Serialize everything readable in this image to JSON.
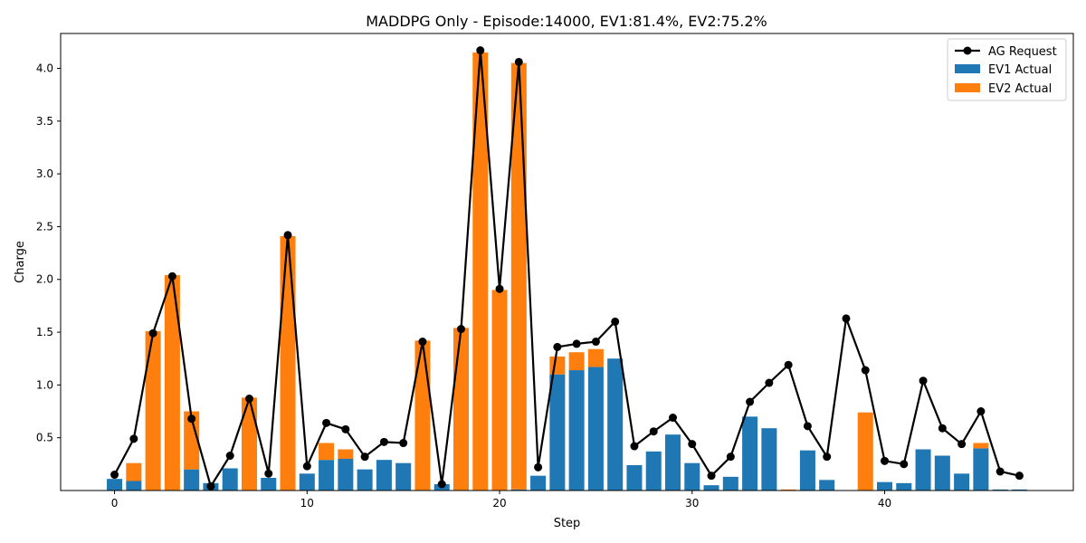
{
  "chart_data": {
    "type": "bar",
    "title": "MADDPG Only - Episode:14000, EV1:81.4%, EV2:75.2%",
    "xlabel": "Step",
    "ylabel": "Charge",
    "xlim": [
      -2.8,
      49.8
    ],
    "ylim": [
      0,
      4.33
    ],
    "x_ticks": [
      0,
      10,
      20,
      30,
      40
    ],
    "y_ticks": [
      0.5,
      1.0,
      1.5,
      2.0,
      2.5,
      3.0,
      3.5,
      4.0
    ],
    "y_tick_labels": [
      "0.5",
      "1.0",
      "1.5",
      "2.0",
      "2.5",
      "3.0",
      "3.5",
      "4.0"
    ],
    "grid": false,
    "legend_position": "top-right",
    "legend": [
      "AG Request",
      "EV1 Actual",
      "EV2 Actual"
    ],
    "x": [
      0,
      1,
      2,
      3,
      4,
      5,
      6,
      7,
      8,
      9,
      10,
      11,
      12,
      13,
      14,
      15,
      16,
      17,
      18,
      19,
      20,
      21,
      22,
      23,
      24,
      25,
      26,
      27,
      28,
      29,
      30,
      31,
      32,
      33,
      34,
      35,
      36,
      37,
      38,
      39,
      40,
      41,
      42,
      43,
      44,
      45,
      46,
      47
    ],
    "series": [
      {
        "name": "AG Request",
        "kind": "line",
        "color": "#000000",
        "values": [
          0.15,
          0.49,
          1.49,
          2.03,
          0.68,
          0.04,
          0.33,
          0.87,
          0.16,
          2.42,
          0.23,
          0.64,
          0.58,
          0.32,
          0.46,
          0.45,
          1.41,
          0.06,
          1.53,
          4.17,
          1.91,
          4.06,
          0.22,
          1.36,
          1.39,
          1.41,
          1.6,
          0.42,
          0.56,
          0.69,
          0.44,
          0.14,
          0.32,
          0.84,
          1.02,
          1.19,
          0.61,
          0.32,
          1.63,
          1.14,
          0.28,
          0.25,
          1.04,
          0.59,
          0.44,
          0.75,
          0.18,
          0.14
        ]
      },
      {
        "name": "EV1 Actual",
        "kind": "bar",
        "color": "#1f77b4",
        "values": [
          0.11,
          0.09,
          0,
          0,
          0.2,
          0.07,
          0.21,
          0,
          0.12,
          0,
          0.16,
          0.29,
          0.3,
          0.2,
          0.29,
          0.26,
          0,
          0.06,
          0,
          0,
          0,
          0.01,
          0.14,
          1.1,
          1.14,
          1.17,
          1.25,
          0.24,
          0.37,
          0.53,
          0.26,
          0.05,
          0.13,
          0.7,
          0.59,
          0,
          0.38,
          0.1,
          0,
          0,
          0.08,
          0.07,
          0.39,
          0.33,
          0.16,
          0.4,
          0.01,
          0.01
        ]
      },
      {
        "name": "EV2 Actual",
        "kind": "bar",
        "color": "#ff7f0e",
        "values": [
          0,
          0.17,
          1.51,
          2.04,
          0.55,
          0,
          0,
          0.88,
          0,
          2.41,
          0,
          0.16,
          0.09,
          0,
          0,
          0,
          1.42,
          0,
          1.54,
          4.15,
          1.9,
          4.04,
          0,
          0.17,
          0.17,
          0.17,
          0,
          0,
          0,
          0,
          0,
          0,
          0,
          0,
          0,
          0.01,
          0,
          0,
          0,
          0.74,
          0,
          0,
          0,
          0,
          0,
          0.05,
          0,
          0
        ]
      }
    ]
  }
}
